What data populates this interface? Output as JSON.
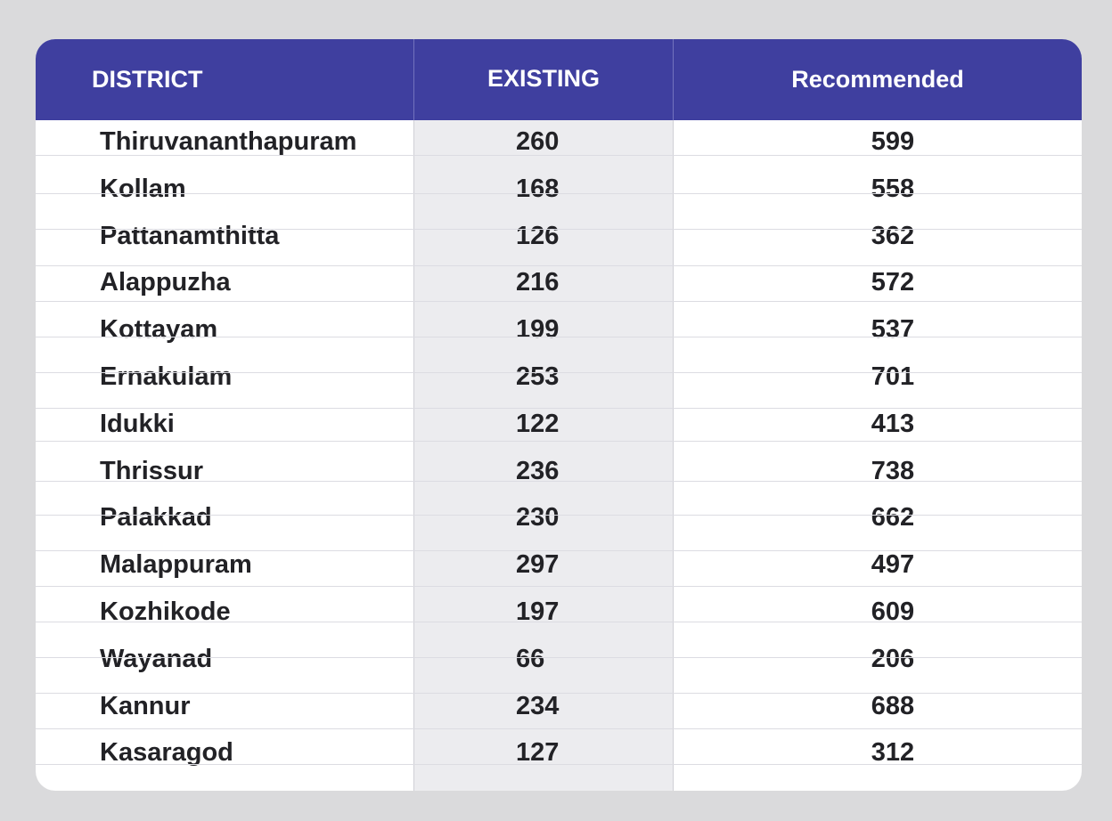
{
  "chart_data": {
    "type": "table",
    "columns": [
      "DISTRICT",
      "EXISTING",
      "Recommended"
    ],
    "rows": [
      {
        "district": "Thiruvananthapuram",
        "existing": "260",
        "recommended": "599"
      },
      {
        "district": "Kollam",
        "existing": "168",
        "recommended": "558"
      },
      {
        "district": "Pattanamthitta",
        "existing": "126",
        "recommended": "362"
      },
      {
        "district": "Alappuzha",
        "existing": "216",
        "recommended": "572"
      },
      {
        "district": "Kottayam",
        "existing": "199",
        "recommended": "537"
      },
      {
        "district": "Ernakulam",
        "existing": "253",
        "recommended": "701"
      },
      {
        "district": "Idukki",
        "existing": "122",
        "recommended": "413"
      },
      {
        "district": "Thrissur",
        "existing": "236",
        "recommended": "738"
      },
      {
        "district": "Palakkad",
        "existing": "230",
        "recommended": "662"
      },
      {
        "district": "Malappuram",
        "existing": "297",
        "recommended": "497"
      },
      {
        "district": "Kozhikode",
        "existing": "197",
        "recommended": "609"
      },
      {
        "district": "Wayanad",
        "existing": "66",
        "recommended": "206"
      },
      {
        "district": "Kannur",
        "existing": "234",
        "recommended": "688"
      },
      {
        "district": "Kasaragod",
        "existing": "127",
        "recommended": "312"
      }
    ]
  },
  "colors": {
    "header_background": "#3f3f9f",
    "header_text": "#ffffff",
    "page_background": "#dadadc",
    "existing_column_shade": "#ececef",
    "body_text": "#222226"
  }
}
